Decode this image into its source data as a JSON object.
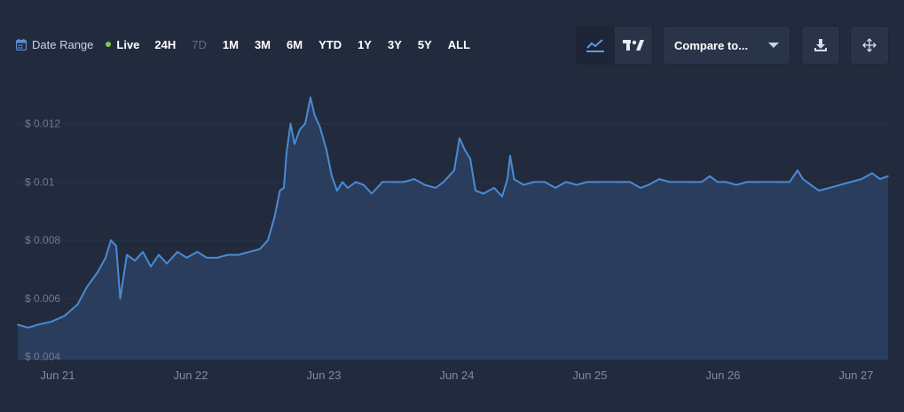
{
  "toolbar": {
    "date_range_label": "Date Range",
    "live_label": "Live",
    "ranges": [
      {
        "label": "24H",
        "enabled": true
      },
      {
        "label": "7D",
        "enabled": false
      },
      {
        "label": "1M",
        "enabled": true
      },
      {
        "label": "3M",
        "enabled": true
      },
      {
        "label": "6M",
        "enabled": true
      },
      {
        "label": "YTD",
        "enabled": true
      },
      {
        "label": "1Y",
        "enabled": true
      },
      {
        "label": "3Y",
        "enabled": true
      },
      {
        "label": "5Y",
        "enabled": true
      },
      {
        "label": "ALL",
        "enabled": true
      }
    ],
    "chart_types": [
      {
        "icon": "line-chart-icon",
        "active": true
      },
      {
        "icon": "tradingview-logo-icon",
        "active": false
      }
    ],
    "compare_label": "Compare to...",
    "download_icon": "download-icon",
    "expand_icon": "move-arrows-icon"
  },
  "colors": {
    "background": "#222b3e",
    "line": "#4a8ad4",
    "area": "#2b4163",
    "grid": "#2a3347",
    "live_dot": "#7ec95a"
  },
  "chart_data": {
    "type": "area",
    "title": "",
    "xlabel": "",
    "ylabel": "",
    "y_tick_prefix": "$ ",
    "yticks": [
      0.004,
      0.006,
      0.008,
      0.01,
      0.012
    ],
    "ytick_labels": [
      "$ 0.004",
      "$ 0.006",
      "$ 0.008",
      "$ 0.01",
      "$ 0.012"
    ],
    "ylim": [
      0.0039,
      0.0129
    ],
    "xlim": [
      20.7,
      27.24
    ],
    "xticks": [
      21,
      22,
      23,
      24,
      25,
      26,
      27
    ],
    "xtick_labels": [
      "Jun 21",
      "Jun 22",
      "Jun 23",
      "Jun 24",
      "Jun 25",
      "Jun 26",
      "Jun 27"
    ],
    "grid": true,
    "series": [
      {
        "values": [
          [
            20.7,
            0.0051
          ],
          [
            20.78,
            0.005
          ],
          [
            20.85,
            0.0051
          ],
          [
            20.95,
            0.0052
          ],
          [
            21.05,
            0.0054
          ],
          [
            21.15,
            0.0058
          ],
          [
            21.22,
            0.0064
          ],
          [
            21.3,
            0.0069
          ],
          [
            21.36,
            0.0074
          ],
          [
            21.4,
            0.008
          ],
          [
            21.44,
            0.0078
          ],
          [
            21.47,
            0.006
          ],
          [
            21.52,
            0.0075
          ],
          [
            21.58,
            0.0073
          ],
          [
            21.64,
            0.0076
          ],
          [
            21.7,
            0.0071
          ],
          [
            21.76,
            0.0075
          ],
          [
            21.82,
            0.0072
          ],
          [
            21.9,
            0.0076
          ],
          [
            21.97,
            0.0074
          ],
          [
            22.05,
            0.0076
          ],
          [
            22.12,
            0.0074
          ],
          [
            22.2,
            0.0074
          ],
          [
            22.28,
            0.0075
          ],
          [
            22.36,
            0.0075
          ],
          [
            22.44,
            0.0076
          ],
          [
            22.52,
            0.0077
          ],
          [
            22.58,
            0.008
          ],
          [
            22.63,
            0.0088
          ],
          [
            22.67,
            0.0097
          ],
          [
            22.7,
            0.0098
          ],
          [
            22.72,
            0.011
          ],
          [
            22.75,
            0.012
          ],
          [
            22.78,
            0.0113
          ],
          [
            22.82,
            0.0118
          ],
          [
            22.86,
            0.012
          ],
          [
            22.9,
            0.0129
          ],
          [
            22.93,
            0.0123
          ],
          [
            22.97,
            0.0119
          ],
          [
            23.02,
            0.0111
          ],
          [
            23.06,
            0.0102
          ],
          [
            23.1,
            0.0097
          ],
          [
            23.14,
            0.01
          ],
          [
            23.18,
            0.0098
          ],
          [
            23.24,
            0.01
          ],
          [
            23.3,
            0.0099
          ],
          [
            23.36,
            0.0096
          ],
          [
            23.44,
            0.01
          ],
          [
            23.52,
            0.01
          ],
          [
            23.6,
            0.01
          ],
          [
            23.68,
            0.0101
          ],
          [
            23.76,
            0.0099
          ],
          [
            23.84,
            0.0098
          ],
          [
            23.9,
            0.01
          ],
          [
            23.98,
            0.0104
          ],
          [
            24.02,
            0.0115
          ],
          [
            24.06,
            0.0111
          ],
          [
            24.1,
            0.0108
          ],
          [
            24.14,
            0.0097
          ],
          [
            24.2,
            0.0096
          ],
          [
            24.28,
            0.0098
          ],
          [
            24.34,
            0.0095
          ],
          [
            24.38,
            0.0101
          ],
          [
            24.4,
            0.0109
          ],
          [
            24.43,
            0.0101
          ],
          [
            24.5,
            0.0099
          ],
          [
            24.58,
            0.01
          ],
          [
            24.66,
            0.01
          ],
          [
            24.74,
            0.0098
          ],
          [
            24.82,
            0.01
          ],
          [
            24.9,
            0.0099
          ],
          [
            24.98,
            0.01
          ],
          [
            25.06,
            0.01
          ],
          [
            25.14,
            0.01
          ],
          [
            25.22,
            0.01
          ],
          [
            25.3,
            0.01
          ],
          [
            25.38,
            0.0098
          ],
          [
            25.44,
            0.0099
          ],
          [
            25.52,
            0.0101
          ],
          [
            25.6,
            0.01
          ],
          [
            25.68,
            0.01
          ],
          [
            25.76,
            0.01
          ],
          [
            25.84,
            0.01
          ],
          [
            25.9,
            0.0102
          ],
          [
            25.96,
            0.01
          ],
          [
            26.02,
            0.01
          ],
          [
            26.1,
            0.0099
          ],
          [
            26.18,
            0.01
          ],
          [
            26.26,
            0.01
          ],
          [
            26.34,
            0.01
          ],
          [
            26.42,
            0.01
          ],
          [
            26.5,
            0.01
          ],
          [
            26.56,
            0.0104
          ],
          [
            26.6,
            0.0101
          ],
          [
            26.66,
            0.0099
          ],
          [
            26.72,
            0.0097
          ],
          [
            26.8,
            0.0098
          ],
          [
            26.88,
            0.0099
          ],
          [
            26.96,
            0.01
          ],
          [
            27.04,
            0.0101
          ],
          [
            27.12,
            0.0103
          ],
          [
            27.18,
            0.0101
          ],
          [
            27.24,
            0.0102
          ]
        ]
      }
    ]
  }
}
